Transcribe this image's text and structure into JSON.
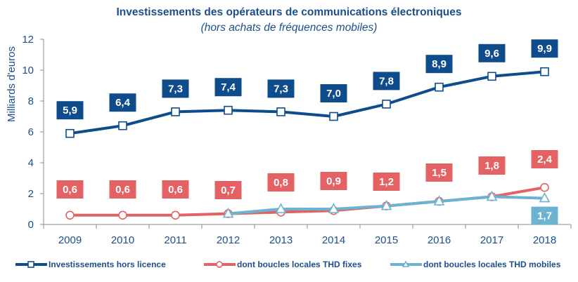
{
  "chart_data": {
    "type": "line",
    "title": "Investissements des opérateurs de communications électroniques",
    "subtitle": "(hors achats de fréquences mobiles)",
    "xlabel": "",
    "ylabel": "Milliards d'euros",
    "ylim": [
      0,
      12
    ],
    "yticks": [
      0,
      2,
      4,
      6,
      8,
      10,
      12
    ],
    "grid": false,
    "legend_position": "bottom",
    "categories": [
      "2009",
      "2010",
      "2011",
      "2012",
      "2013",
      "2014",
      "2015",
      "2016",
      "2017",
      "2018"
    ],
    "series": [
      {
        "name": "Investissements hors licence",
        "color": "#0f4c8c",
        "marker": "square",
        "values": [
          5.9,
          6.4,
          7.3,
          7.4,
          7.3,
          7.0,
          7.8,
          8.9,
          9.6,
          9.9
        ],
        "labels": [
          "5,9",
          "6,4",
          "7,3",
          "7,4",
          "7,3",
          "7,0",
          "7,8",
          "8,9",
          "9,6",
          "9,9"
        ],
        "label_position": "above"
      },
      {
        "name": "dont boucles locales THD fixes",
        "color": "#e46264",
        "marker": "circle",
        "values": [
          0.6,
          0.6,
          0.6,
          0.7,
          0.8,
          0.9,
          1.2,
          1.5,
          1.8,
          2.4
        ],
        "labels": [
          "0,6",
          "0,6",
          "0,6",
          "0,7",
          "0,8",
          "0,9",
          "1,2",
          "1,5",
          "1,8",
          "2,4"
        ],
        "label_position": "above"
      },
      {
        "name": "dont boucles locales THD mobiles",
        "color": "#6bb3d0",
        "marker": "triangle",
        "values": [
          null,
          null,
          null,
          0.7,
          1.0,
          1.0,
          1.2,
          1.5,
          1.8,
          1.7
        ],
        "labels": [
          null,
          null,
          null,
          null,
          null,
          null,
          null,
          null,
          null,
          "1,7"
        ],
        "label_position": "below"
      }
    ]
  }
}
